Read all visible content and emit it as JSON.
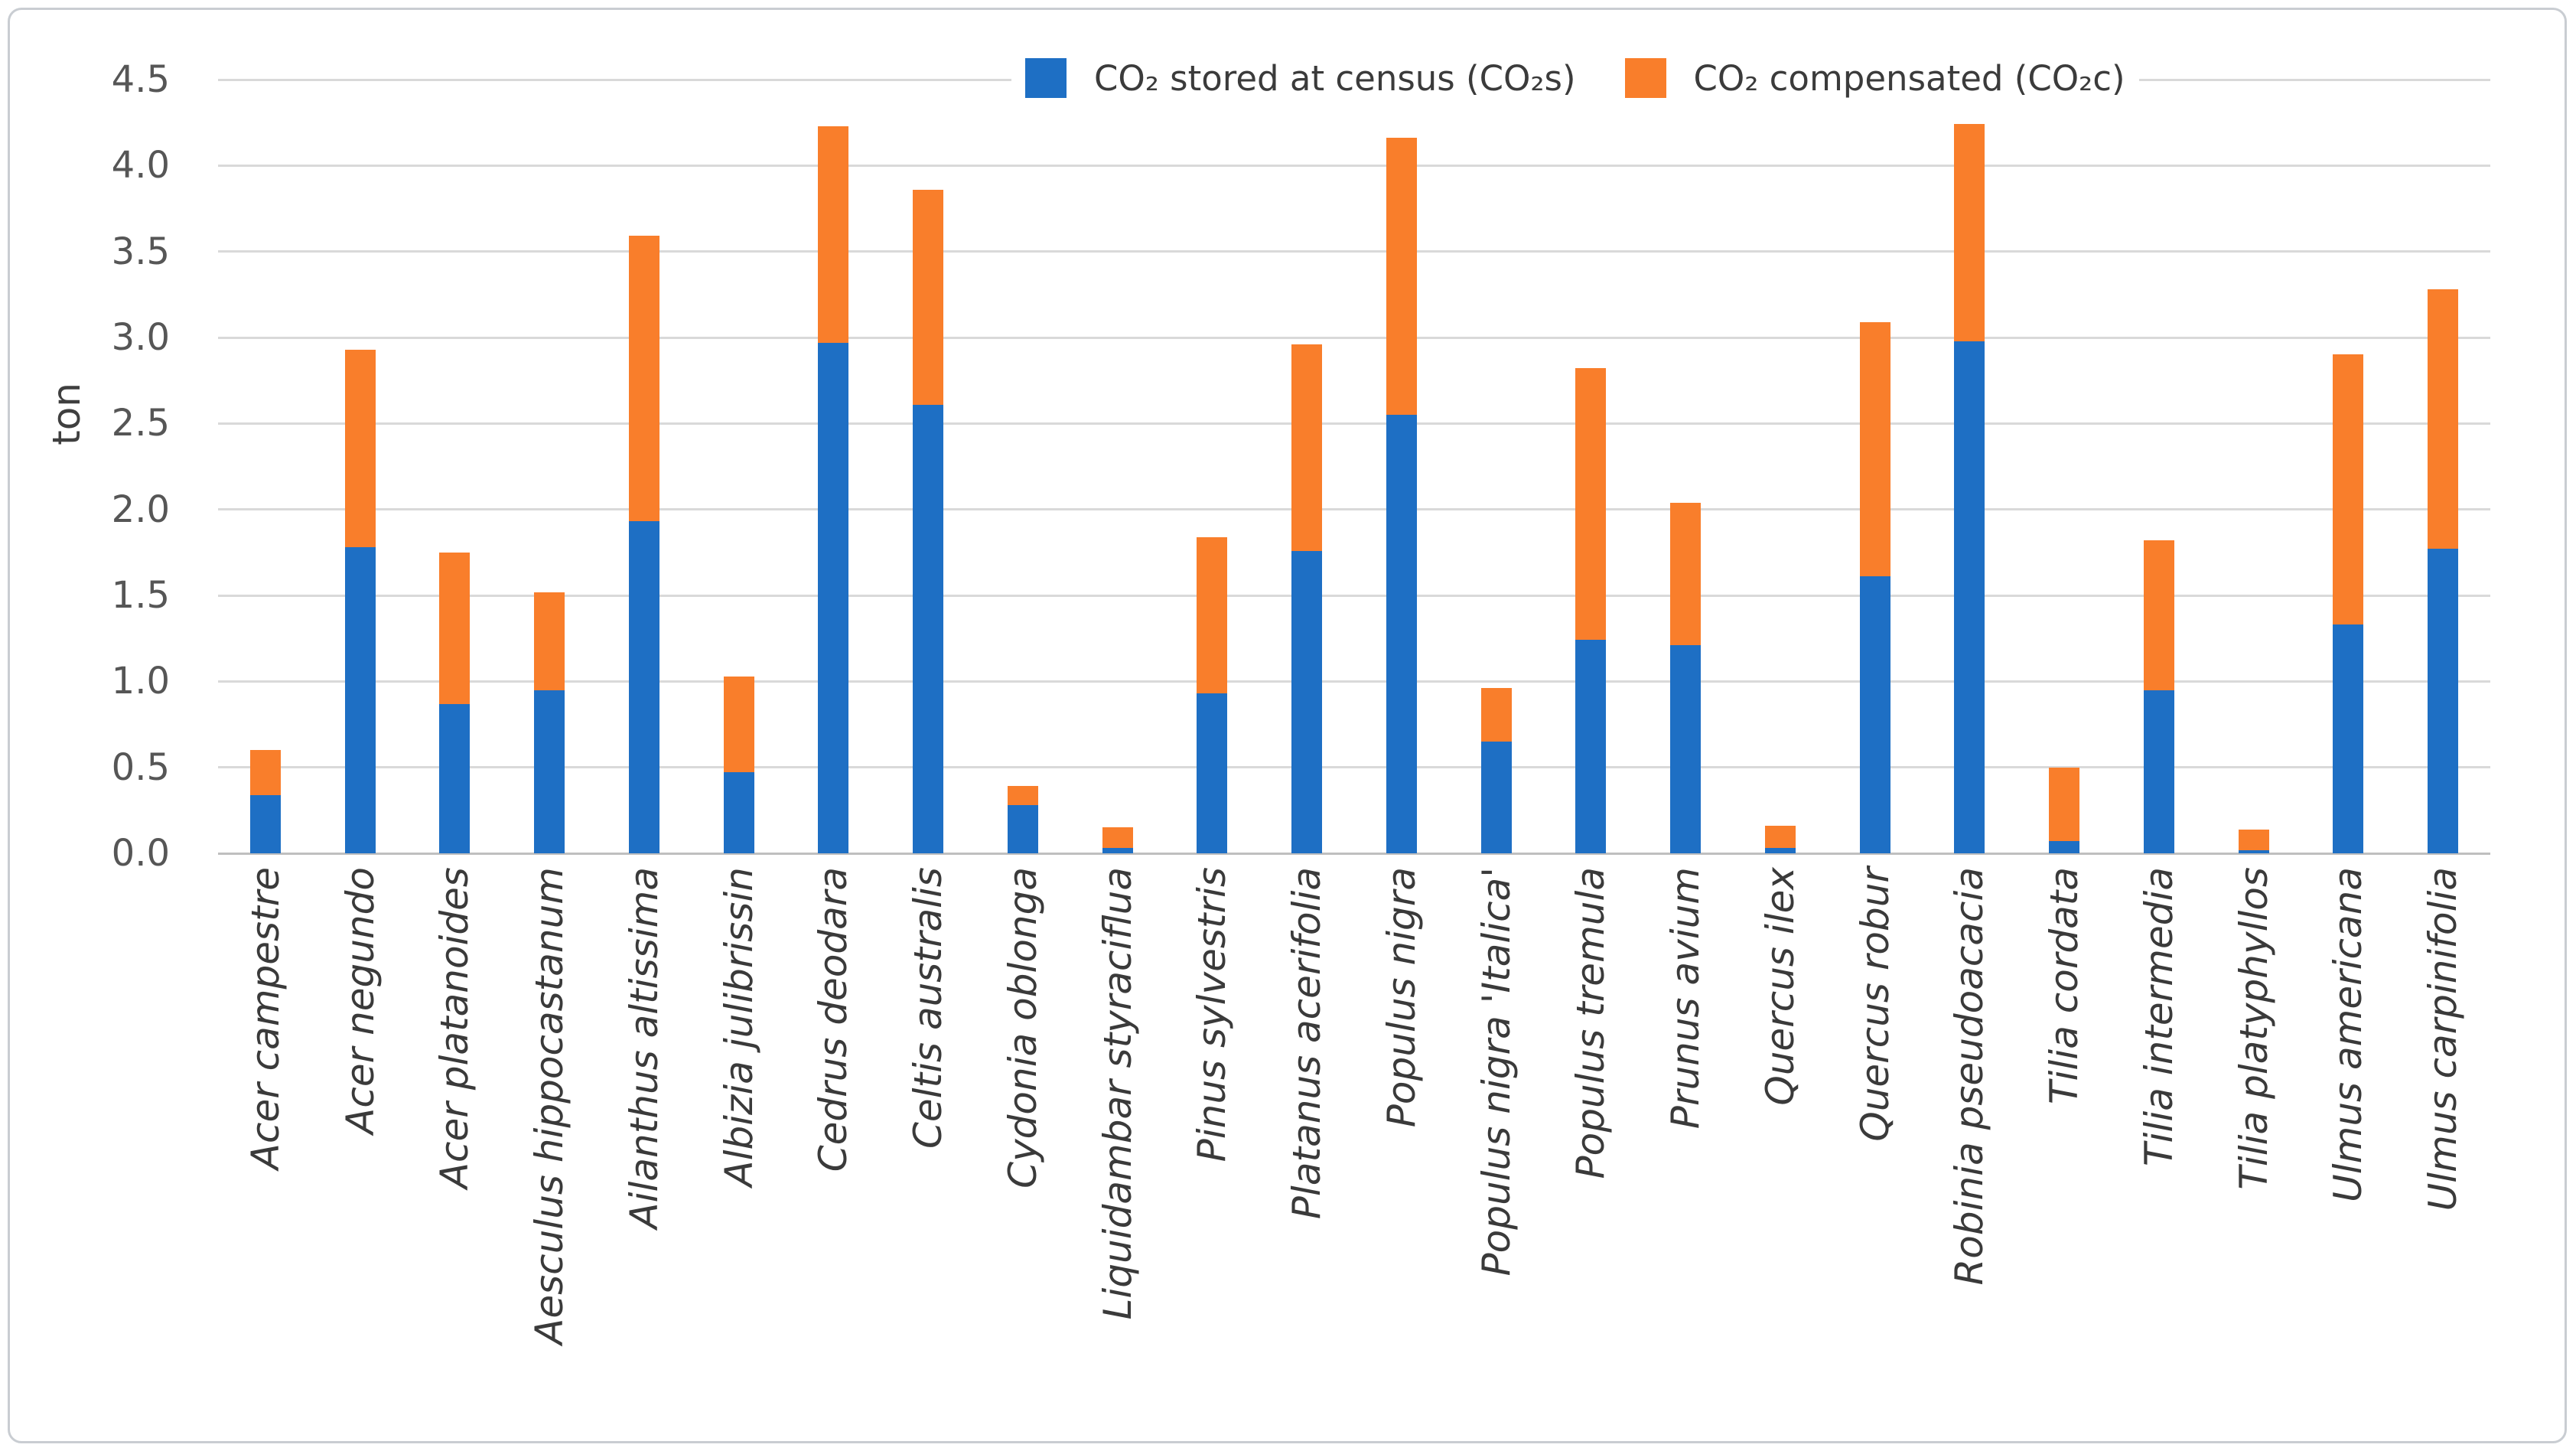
{
  "figure": {
    "background": "#ffffff",
    "border_color": "#c9cdd2"
  },
  "chart_data": {
    "type": "bar",
    "stacked": true,
    "title": "",
    "xlabel": "",
    "ylabel": "ton",
    "ylim": [
      0,
      4.5
    ],
    "ytick_step": 0.5,
    "ytick_labels": [
      "0.0",
      "0.5",
      "1.0",
      "1.5",
      "2.0",
      "2.5",
      "3.0",
      "3.5",
      "4.0",
      "4.5"
    ],
    "grid": true,
    "legend_position": "top-center",
    "categories": [
      "Acer campestre",
      "Acer negundo",
      "Acer platanoides",
      "Aesculus hippocastanum",
      "Ailanthus altissima",
      "Albizia julibrissin",
      "Cedrus deodara",
      "Celtis australis",
      "Cydonia oblonga",
      "Liquidambar styraciflua",
      "Pinus sylvestris",
      "Platanus acerifolia",
      "Populus nigra",
      "Populus nigra 'Italica'",
      "Populus tremula",
      "Prunus avium",
      "Quercus ilex",
      "Quercus robur",
      "Robinia pseudoacacia",
      "Tilia cordata",
      "Tilia intermedia",
      "Tilia platyphyllos",
      "Ulmus americana",
      "Ulmus carpinifolia"
    ],
    "series": [
      {
        "name": "CO₂ stored at census (CO₂s)",
        "color": "#1e6fc4",
        "values": [
          0.34,
          1.78,
          0.87,
          0.95,
          1.93,
          0.47,
          2.97,
          2.61,
          0.28,
          0.03,
          0.93,
          1.76,
          2.55,
          0.65,
          1.24,
          1.21,
          0.03,
          1.61,
          2.98,
          0.07,
          0.95,
          0.02,
          1.33,
          1.77
        ]
      },
      {
        "name": "CO₂ compensated (CO₂c)",
        "color": "#f97e2b",
        "values": [
          0.26,
          1.15,
          0.88,
          0.57,
          1.66,
          0.56,
          1.26,
          1.25,
          0.11,
          0.12,
          0.91,
          1.2,
          1.61,
          0.31,
          1.58,
          0.83,
          0.13,
          1.48,
          1.26,
          0.43,
          0.87,
          0.12,
          1.57,
          1.51
        ]
      }
    ]
  }
}
